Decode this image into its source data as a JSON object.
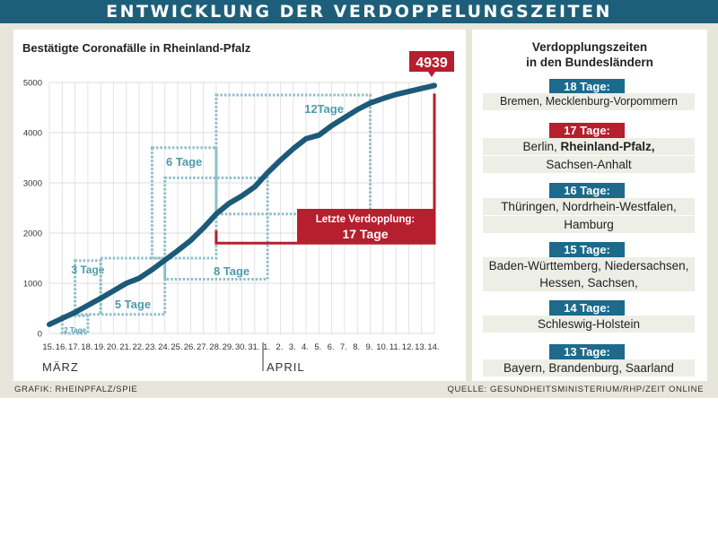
{
  "header": {
    "title": "ENTWICKLUNG DER VERDOPPELUNGSZEITEN"
  },
  "chart_data": {
    "type": "line",
    "title": "Bestätigte Coronafälle in Rheinland-Pfalz",
    "x_ticks": [
      "15.",
      "16.",
      "17.",
      "18.",
      "19.",
      "20.",
      "21.",
      "22.",
      "23.",
      "24.",
      "25.",
      "26.",
      "27.",
      "28.",
      "29.",
      "30.",
      "31.",
      "1.",
      "2.",
      "3.",
      "4.",
      "5.",
      "6.",
      "7.",
      "8.",
      "9.",
      "10.",
      "11.",
      "12.",
      "13.",
      "14."
    ],
    "month_labels": [
      "MÄRZ",
      "APRIL"
    ],
    "y_ticks": [
      "0",
      "1000",
      "2000",
      "3000",
      "4000",
      "5000"
    ],
    "ylim": [
      0,
      5000
    ],
    "series": [
      {
        "values": [
          180,
          300,
          420,
          560,
          700,
          850,
          1000,
          1100,
          1270,
          1460,
          1650,
          1850,
          2100,
          2380,
          2590,
          2740,
          2920,
          3200,
          3450,
          3680,
          3880,
          3950,
          4140,
          4300,
          4460,
          4590,
          4680,
          4760,
          4820,
          4880,
          4939
        ]
      }
    ],
    "end_value_label": "4939",
    "annotations": [
      {
        "label": "2 Tage",
        "from": "16.",
        "to": "18.",
        "y_low": 0,
        "y_high": 350
      },
      {
        "label": "3 Tage",
        "from": "17.",
        "to": "19.",
        "y_low": 380,
        "y_high": 1450
      },
      {
        "label": "5 Tage",
        "from": "19.",
        "to": "24.",
        "y_low": 380,
        "y_high": 1500
      },
      {
        "label": "6 Tage",
        "from": "23.",
        "to": "28.",
        "y_low": 1500,
        "y_high": 3700
      },
      {
        "label": "8 Tage",
        "from": "24.",
        "to": "1.",
        "y_low": 1080,
        "y_high": 3100
      },
      {
        "label": "12Tage",
        "from": "28.",
        "to": "9.",
        "y_low": 2380,
        "y_high": 4750
      }
    ],
    "highlight": {
      "label_line1": "Letzte Verdopplung:",
      "label_line2": "17 Tage",
      "from": "28.",
      "to": "14.",
      "y": 1800
    }
  },
  "side": {
    "title_line1": "Verdopplungszeiten",
    "title_line2": "in den Bundesländern",
    "groups": [
      {
        "label": "18 Tage:",
        "lines": [
          "Bremen, Mecklenburg-Vorpommern"
        ]
      },
      {
        "label": "17 Tage:",
        "lines_pre": "Berlin, ",
        "lines_bold": "Rheinland-Pfalz,",
        "line2": "Sachsen-Anhalt"
      },
      {
        "label": "16 Tage:",
        "lines": [
          "Thüringen, Nordrhein-Westfalen,",
          "Hamburg"
        ]
      },
      {
        "label": "15 Tage:",
        "lines": [
          "Baden-Württemberg, Niedersachsen,",
          "Hessen, Sachsen,"
        ]
      },
      {
        "label": "14 Tage:",
        "lines": [
          "Schleswig-Holstein"
        ]
      },
      {
        "label": "13 Tage:",
        "lines": [
          "Bayern, Brandenburg, Saarland"
        ]
      }
    ]
  },
  "footer": {
    "left": "GRAFIK: RHEINPFALZ/SPIE",
    "right": "QUELLE: GESUNDHEITSMINISTERIUM/RHP/ZEIT ONLINE"
  },
  "colors": {
    "header": "#1d5f7a",
    "line": "#1c5a78",
    "box": "#8ebfca",
    "box_text": "#4e9aab",
    "red": "#b51f2e",
    "label_blue": "#1c6a8c"
  }
}
